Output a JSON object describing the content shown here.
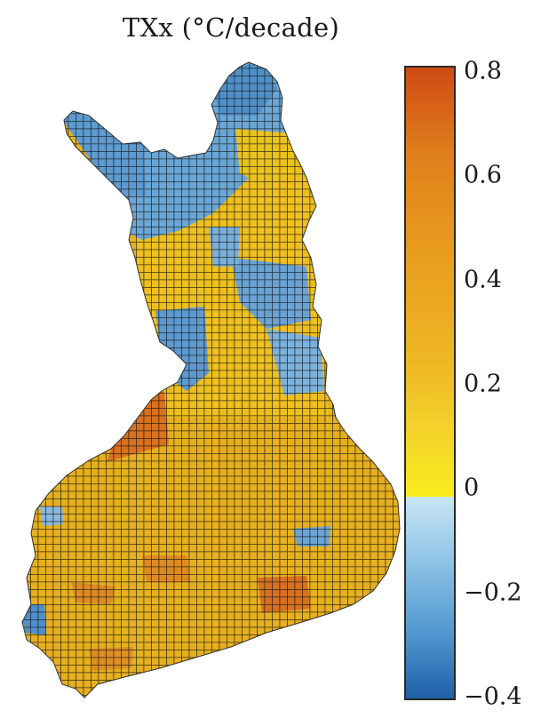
{
  "title": "TXx (°C/decade)",
  "legend": {
    "ticks": [
      "0.8",
      "0.6",
      "0.4",
      "0.2",
      "0",
      "−0.2",
      "−0.4"
    ],
    "values": [
      0.8,
      0.6,
      0.4,
      0.2,
      0.0,
      -0.2,
      -0.4
    ],
    "range": [
      -0.4,
      0.8
    ]
  },
  "colors": {
    "warm_max": "#cf4a14",
    "warm_mid": "#e8a31f",
    "warm_low": "#f8ec1e",
    "cool_low": "#c9e5f5",
    "cool_max": "#1f5fa8",
    "grid": "#111111"
  }
}
